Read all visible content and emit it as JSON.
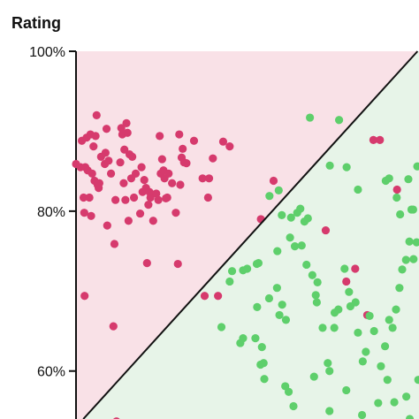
{
  "chart_data": {
    "type": "scatter",
    "ylabel": "Rating",
    "xlabel": "",
    "title": "",
    "ylim": [
      54,
      100
    ],
    "xlim": [
      0,
      100
    ],
    "y_ticks": [
      "100%",
      "80%",
      "60%"
    ],
    "y_tick_values": [
      100,
      80,
      60
    ],
    "grid": false,
    "divider_line": {
      "from": [
        0,
        53
      ],
      "to": [
        100,
        100.2
      ]
    },
    "colors": {
      "upper_region": "#f9e1e7",
      "lower_region": "#e7f4e8",
      "red_points": "#d63a6d",
      "green_points": "#5ecf6b",
      "line": "#111111"
    },
    "series": [
      {
        "color": "red",
        "points": [
          [
            0,
            85.9
          ],
          [
            1.3,
            85.5
          ],
          [
            1.7,
            88.8
          ],
          [
            2.2,
            81.7
          ],
          [
            2.4,
            79.8
          ],
          [
            2.5,
            69.4
          ],
          [
            2.7,
            85.5
          ],
          [
            3.1,
            89.2
          ],
          [
            3.4,
            85.1
          ],
          [
            3.9,
            81.7
          ],
          [
            4.2,
            89.6
          ],
          [
            4.4,
            79.4
          ],
          [
            4.7,
            84.7
          ],
          [
            5.1,
            88.1
          ],
          [
            5.4,
            83.8
          ],
          [
            5.7,
            89.4
          ],
          [
            6.0,
            92.0
          ],
          [
            6.3,
            83.3
          ],
          [
            6.6,
            82.9
          ],
          [
            6.8,
            83.5
          ],
          [
            7.3,
            86.8
          ],
          [
            8.4,
            85.9
          ],
          [
            8.6,
            87.3
          ],
          [
            8.9,
            90.3
          ],
          [
            9.1,
            78.2
          ],
          [
            9.5,
            86.3
          ],
          [
            10.2,
            84.7
          ],
          [
            10.9,
            65.6
          ],
          [
            11.2,
            75.9
          ],
          [
            11.5,
            81.4
          ],
          [
            11.8,
            53.7
          ],
          [
            12.9,
            86.1
          ],
          [
            13.2,
            90.4
          ],
          [
            13.5,
            89.6
          ],
          [
            13.9,
            83.5
          ],
          [
            14.1,
            87.7
          ],
          [
            14.4,
            81.4
          ],
          [
            14.7,
            91.0
          ],
          [
            15.0,
            89.8
          ],
          [
            15.3,
            78.8
          ],
          [
            15.6,
            87.1
          ],
          [
            16.1,
            84.1
          ],
          [
            16.4,
            86.8
          ],
          [
            16.9,
            81.7
          ],
          [
            17.4,
            84.7
          ],
          [
            18.7,
            79.7
          ],
          [
            19.1,
            85.5
          ],
          [
            19.4,
            82.4
          ],
          [
            19.9,
            83.9
          ],
          [
            20.4,
            82.9
          ],
          [
            20.7,
            73.5
          ],
          [
            21.1,
            80.8
          ],
          [
            21.4,
            82.4
          ],
          [
            21.7,
            81.7
          ],
          [
            22.5,
            78.8
          ],
          [
            23.4,
            82.2
          ],
          [
            24.0,
            81.4
          ],
          [
            24.4,
            89.4
          ],
          [
            24.7,
            84.7
          ],
          [
            25.1,
            86.5
          ],
          [
            25.5,
            85.1
          ],
          [
            25.8,
            84.1
          ],
          [
            26.2,
            81.6
          ],
          [
            26.6,
            81.7
          ],
          [
            27.0,
            84.7
          ],
          [
            28.0,
            83.5
          ],
          [
            29.1,
            79.8
          ],
          [
            29.7,
            73.4
          ],
          [
            30.1,
            89.6
          ],
          [
            30.4,
            83.3
          ],
          [
            30.8,
            86.7
          ],
          [
            31.1,
            87.8
          ],
          [
            31.5,
            86.1
          ],
          [
            32.2,
            86.0
          ],
          [
            34.4,
            88.8
          ],
          [
            36.9,
            84.1
          ],
          [
            38.5,
            81.7
          ],
          [
            38.8,
            84.1
          ],
          [
            39.9,
            86.6
          ],
          [
            41.4,
            69.4
          ],
          [
            42.9,
            88.7
          ],
          [
            37.5,
            69.4
          ],
          [
            44.8,
            88.1
          ],
          [
            57.6,
            83.8
          ],
          [
            53.9,
            79.0
          ],
          [
            72.8,
            77.6
          ],
          [
            78.8,
            71.2
          ],
          [
            81.4,
            72.8
          ],
          [
            84.9,
            67.0
          ],
          [
            86.7,
            88.9
          ],
          [
            88.6,
            88.9
          ],
          [
            93.6,
            82.7
          ]
        ]
      },
      {
        "color": "green",
        "points": [
          [
            68.2,
            91.7
          ],
          [
            76.7,
            91.4
          ],
          [
            74.0,
            85.7
          ],
          [
            78.9,
            85.5
          ],
          [
            82.2,
            82.7
          ],
          [
            56.4,
            81.9
          ],
          [
            59.1,
            82.6
          ],
          [
            60.0,
            79.5
          ],
          [
            62.7,
            79.2
          ],
          [
            64.5,
            79.8
          ],
          [
            65.4,
            80.3
          ],
          [
            66.6,
            78.7
          ],
          [
            67.6,
            79.1
          ],
          [
            90.3,
            83.8
          ],
          [
            91.3,
            84.1
          ],
          [
            93.5,
            81.7
          ],
          [
            96.9,
            84.0
          ],
          [
            99.5,
            85.6
          ],
          [
            94.5,
            79.6
          ],
          [
            97.8,
            80.2
          ],
          [
            98.3,
            80.2
          ],
          [
            52.7,
            73.4
          ],
          [
            53.2,
            73.5
          ],
          [
            49.9,
            72.8
          ],
          [
            52.8,
            68.0
          ],
          [
            54.2,
            63.0
          ],
          [
            56.3,
            69.1
          ],
          [
            58.6,
            70.4
          ],
          [
            59.3,
            67.0
          ],
          [
            60.1,
            68.3
          ],
          [
            61.2,
            66.4
          ],
          [
            52.3,
            64.1
          ],
          [
            53.8,
            60.8
          ],
          [
            54.7,
            61.0
          ],
          [
            54.9,
            59.0
          ],
          [
            45.5,
            72.5
          ],
          [
            48.7,
            72.6
          ],
          [
            44.8,
            71.2
          ],
          [
            42.4,
            65.5
          ],
          [
            47.9,
            63.5
          ],
          [
            48.7,
            64.1
          ],
          [
            58.7,
            75.0
          ],
          [
            62.4,
            76.7
          ],
          [
            63.8,
            75.6
          ],
          [
            65.8,
            75.7
          ],
          [
            67.2,
            73.3
          ],
          [
            68.9,
            72.0
          ],
          [
            69.9,
            69.5
          ],
          [
            70.2,
            68.6
          ],
          [
            71.9,
            65.4
          ],
          [
            73.4,
            61.0
          ],
          [
            73.9,
            60.0
          ],
          [
            75.3,
            65.4
          ],
          [
            76.5,
            67.7
          ],
          [
            78.3,
            72.8
          ],
          [
            79.6,
            69.9
          ],
          [
            80.0,
            68.1
          ],
          [
            81.5,
            68.6
          ],
          [
            82.2,
            64.8
          ],
          [
            83.6,
            61.2
          ],
          [
            84.5,
            62.4
          ],
          [
            85.6,
            66.9
          ],
          [
            86.9,
            65.0
          ],
          [
            88.1,
            56.0
          ],
          [
            88.9,
            60.6
          ],
          [
            90.1,
            63.1
          ],
          [
            91.3,
            66.4
          ],
          [
            92.3,
            65.4
          ],
          [
            93.3,
            67.7
          ],
          [
            94.3,
            70.4
          ],
          [
            95.1,
            72.7
          ],
          [
            96.2,
            73.9
          ],
          [
            97.2,
            76.2
          ],
          [
            98.4,
            74.0
          ],
          [
            99.3,
            76.1
          ],
          [
            61.0,
            58.1
          ],
          [
            62.0,
            57.4
          ],
          [
            63.4,
            55.6
          ],
          [
            64.7,
            53.2
          ],
          [
            69.4,
            59.3
          ],
          [
            73.9,
            55.0
          ],
          [
            78.8,
            57.6
          ],
          [
            83.4,
            54.5
          ],
          [
            86.9,
            53.4
          ],
          [
            90.8,
            58.9
          ],
          [
            92.8,
            56.1
          ],
          [
            94.8,
            52.8
          ],
          [
            96.3,
            56.8
          ],
          [
            99.8,
            58.9
          ],
          [
            97.3,
            54.0
          ],
          [
            70.4,
            71.1
          ],
          [
            75.4,
            67.3
          ]
        ]
      }
    ]
  }
}
